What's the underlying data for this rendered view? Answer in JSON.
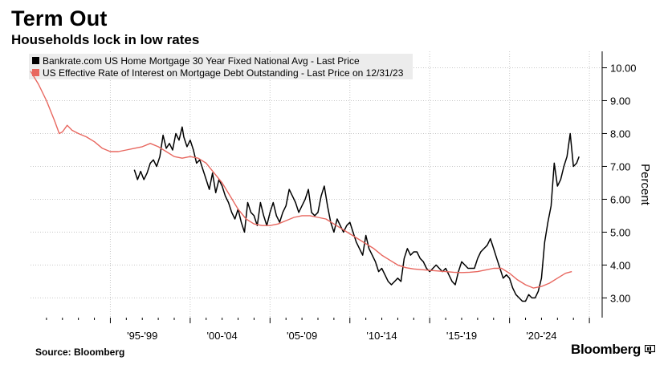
{
  "header": {
    "title": "Term Out",
    "subtitle": "Households lock in low rates"
  },
  "footer": {
    "source": "Source: Bloomberg",
    "brand": "Bloomberg",
    "brand_icon": "bloomberg-terminal-icon"
  },
  "colors": {
    "mortgage_30y": "#000000",
    "effective_rate": "#e8675f",
    "grid": "#c8c8c8",
    "legend_bg": "#ececec"
  },
  "chart_data": {
    "type": "line",
    "title": "Term Out",
    "subtitle": "Households lock in low rates",
    "ylabel": "Percent",
    "ylim": [
      2.4,
      10.5
    ],
    "yticks": [
      "3.00",
      "4.00",
      "5.00",
      "6.00",
      "7.00",
      "8.00",
      "9.00",
      "10.00"
    ],
    "ytick_values": [
      3,
      4,
      5,
      6,
      7,
      8,
      9,
      10
    ],
    "xlim": [
      1990.0,
      2025.8
    ],
    "xtick_labels": [
      "'95-'99",
      "'00-'04",
      "'05-'09",
      "'10-'14",
      "'15-'19",
      "'20-'24"
    ],
    "xtick_centers": [
      1997.0,
      2002.0,
      2007.0,
      2012.0,
      2017.0,
      2022.0
    ],
    "grid": true,
    "legend_position": "top-left",
    "series": [
      {
        "name": "Bankrate.com US Home Mortgage 30 Year Fixed National Avg - Last Price",
        "color": "#000000",
        "points": [
          [
            1996.5,
            6.9
          ],
          [
            1996.7,
            6.6
          ],
          [
            1996.9,
            6.85
          ],
          [
            1997.1,
            6.6
          ],
          [
            1997.3,
            6.8
          ],
          [
            1997.5,
            7.1
          ],
          [
            1997.7,
            7.2
          ],
          [
            1997.9,
            7.0
          ],
          [
            1998.1,
            7.3
          ],
          [
            1998.3,
            7.95
          ],
          [
            1998.5,
            7.55
          ],
          [
            1998.7,
            7.7
          ],
          [
            1998.9,
            7.5
          ],
          [
            1999.1,
            8.0
          ],
          [
            1999.3,
            7.8
          ],
          [
            1999.5,
            8.2
          ],
          [
            1999.6,
            7.9
          ],
          [
            1999.8,
            7.6
          ],
          [
            2000.0,
            7.8
          ],
          [
            2000.2,
            7.5
          ],
          [
            2000.4,
            7.1
          ],
          [
            2000.6,
            7.2
          ],
          [
            2000.8,
            6.9
          ],
          [
            2001.0,
            6.6
          ],
          [
            2001.2,
            6.3
          ],
          [
            2001.4,
            6.8
          ],
          [
            2001.6,
            6.2
          ],
          [
            2001.8,
            6.6
          ],
          [
            2002.0,
            6.4
          ],
          [
            2002.2,
            6.1
          ],
          [
            2002.4,
            5.9
          ],
          [
            2002.6,
            5.6
          ],
          [
            2002.8,
            5.4
          ],
          [
            2003.0,
            5.7
          ],
          [
            2003.2,
            5.3
          ],
          [
            2003.4,
            5.0
          ],
          [
            2003.6,
            5.9
          ],
          [
            2003.8,
            5.6
          ],
          [
            2004.0,
            5.5
          ],
          [
            2004.2,
            5.2
          ],
          [
            2004.4,
            5.9
          ],
          [
            2004.6,
            5.5
          ],
          [
            2004.8,
            5.2
          ],
          [
            2005.0,
            5.6
          ],
          [
            2005.2,
            5.9
          ],
          [
            2005.4,
            5.5
          ],
          [
            2005.6,
            5.3
          ],
          [
            2005.8,
            5.6
          ],
          [
            2006.0,
            5.8
          ],
          [
            2006.2,
            6.3
          ],
          [
            2006.4,
            6.1
          ],
          [
            2006.6,
            5.9
          ],
          [
            2006.8,
            5.6
          ],
          [
            2007.0,
            5.8
          ],
          [
            2007.2,
            6.0
          ],
          [
            2007.4,
            6.3
          ],
          [
            2007.6,
            5.6
          ],
          [
            2007.8,
            5.5
          ],
          [
            2008.0,
            5.6
          ],
          [
            2008.2,
            6.1
          ],
          [
            2008.4,
            6.4
          ],
          [
            2008.6,
            5.8
          ],
          [
            2008.8,
            5.3
          ],
          [
            2009.0,
            5.0
          ],
          [
            2009.2,
            5.4
          ],
          [
            2009.4,
            5.2
          ],
          [
            2009.6,
            5.0
          ],
          [
            2009.8,
            5.2
          ],
          [
            2010.0,
            5.3
          ],
          [
            2010.2,
            5.0
          ],
          [
            2010.4,
            4.7
          ],
          [
            2010.6,
            4.5
          ],
          [
            2010.8,
            4.3
          ],
          [
            2011.0,
            4.9
          ],
          [
            2011.2,
            4.5
          ],
          [
            2011.4,
            4.3
          ],
          [
            2011.6,
            4.1
          ],
          [
            2011.8,
            3.8
          ],
          [
            2012.0,
            3.9
          ],
          [
            2012.2,
            3.7
          ],
          [
            2012.4,
            3.5
          ],
          [
            2012.6,
            3.4
          ],
          [
            2012.8,
            3.5
          ],
          [
            2013.0,
            3.6
          ],
          [
            2013.2,
            3.5
          ],
          [
            2013.4,
            4.2
          ],
          [
            2013.6,
            4.5
          ],
          [
            2013.8,
            4.3
          ],
          [
            2014.0,
            4.4
          ],
          [
            2014.2,
            4.4
          ],
          [
            2014.4,
            4.2
          ],
          [
            2014.6,
            4.1
          ],
          [
            2014.8,
            3.9
          ],
          [
            2015.0,
            3.8
          ],
          [
            2015.2,
            3.9
          ],
          [
            2015.4,
            4.0
          ],
          [
            2015.6,
            3.9
          ],
          [
            2015.8,
            3.8
          ],
          [
            2016.0,
            3.9
          ],
          [
            2016.2,
            3.7
          ],
          [
            2016.4,
            3.5
          ],
          [
            2016.6,
            3.4
          ],
          [
            2016.8,
            3.8
          ],
          [
            2017.0,
            4.1
          ],
          [
            2017.2,
            4.0
          ],
          [
            2017.4,
            3.9
          ],
          [
            2017.6,
            3.9
          ],
          [
            2017.8,
            3.9
          ],
          [
            2018.0,
            4.2
          ],
          [
            2018.2,
            4.4
          ],
          [
            2018.4,
            4.5
          ],
          [
            2018.6,
            4.6
          ],
          [
            2018.8,
            4.8
          ],
          [
            2019.0,
            4.5
          ],
          [
            2019.2,
            4.2
          ],
          [
            2019.4,
            3.9
          ],
          [
            2019.6,
            3.6
          ],
          [
            2019.8,
            3.7
          ],
          [
            2020.0,
            3.6
          ],
          [
            2020.2,
            3.3
          ],
          [
            2020.4,
            3.1
          ],
          [
            2020.6,
            3.0
          ],
          [
            2020.8,
            2.9
          ],
          [
            2021.0,
            2.9
          ],
          [
            2021.2,
            3.1
          ],
          [
            2021.4,
            3.0
          ],
          [
            2021.6,
            3.0
          ],
          [
            2021.8,
            3.2
          ],
          [
            2022.0,
            3.6
          ],
          [
            2022.2,
            4.7
          ],
          [
            2022.4,
            5.3
          ],
          [
            2022.6,
            5.8
          ],
          [
            2022.8,
            7.1
          ],
          [
            2023.0,
            6.4
          ],
          [
            2023.2,
            6.6
          ],
          [
            2023.4,
            7.0
          ],
          [
            2023.6,
            7.3
          ],
          [
            2023.8,
            8.0
          ],
          [
            2024.0,
            7.0
          ],
          [
            2024.2,
            7.1
          ],
          [
            2024.35,
            7.3
          ]
        ]
      },
      {
        "name": "US Effective Rate of Interest on Mortgage Debt Outstanding - Last Price on 12/31/23",
        "color": "#e8675f",
        "points": [
          [
            1990.0,
            9.9
          ],
          [
            1990.5,
            9.5
          ],
          [
            1991.0,
            9.0
          ],
          [
            1991.5,
            8.4
          ],
          [
            1991.8,
            8.0
          ],
          [
            1992.0,
            8.05
          ],
          [
            1992.3,
            8.25
          ],
          [
            1992.6,
            8.1
          ],
          [
            1993.0,
            8.0
          ],
          [
            1993.5,
            7.9
          ],
          [
            1994.0,
            7.75
          ],
          [
            1994.5,
            7.55
          ],
          [
            1995.0,
            7.45
          ],
          [
            1995.5,
            7.45
          ],
          [
            1996.0,
            7.5
          ],
          [
            1996.5,
            7.55
          ],
          [
            1997.0,
            7.6
          ],
          [
            1997.5,
            7.7
          ],
          [
            1998.0,
            7.6
          ],
          [
            1998.5,
            7.45
          ],
          [
            1999.0,
            7.3
          ],
          [
            1999.5,
            7.25
          ],
          [
            2000.0,
            7.3
          ],
          [
            2000.5,
            7.25
          ],
          [
            2001.0,
            7.1
          ],
          [
            2001.5,
            6.8
          ],
          [
            2002.0,
            6.5
          ],
          [
            2002.5,
            6.1
          ],
          [
            2003.0,
            5.7
          ],
          [
            2003.5,
            5.4
          ],
          [
            2004.0,
            5.25
          ],
          [
            2004.5,
            5.2
          ],
          [
            2005.0,
            5.2
          ],
          [
            2005.5,
            5.25
          ],
          [
            2006.0,
            5.35
          ],
          [
            2006.5,
            5.45
          ],
          [
            2007.0,
            5.5
          ],
          [
            2007.5,
            5.5
          ],
          [
            2008.0,
            5.45
          ],
          [
            2008.5,
            5.4
          ],
          [
            2009.0,
            5.25
          ],
          [
            2009.5,
            5.1
          ],
          [
            2010.0,
            4.95
          ],
          [
            2010.5,
            4.8
          ],
          [
            2011.0,
            4.65
          ],
          [
            2011.5,
            4.5
          ],
          [
            2012.0,
            4.3
          ],
          [
            2012.5,
            4.15
          ],
          [
            2013.0,
            4.0
          ],
          [
            2013.5,
            3.92
          ],
          [
            2014.0,
            3.88
          ],
          [
            2014.5,
            3.86
          ],
          [
            2015.0,
            3.84
          ],
          [
            2015.5,
            3.82
          ],
          [
            2016.0,
            3.8
          ],
          [
            2016.5,
            3.78
          ],
          [
            2017.0,
            3.77
          ],
          [
            2017.5,
            3.78
          ],
          [
            2018.0,
            3.8
          ],
          [
            2018.5,
            3.85
          ],
          [
            2019.0,
            3.9
          ],
          [
            2019.5,
            3.9
          ],
          [
            2020.0,
            3.75
          ],
          [
            2020.5,
            3.55
          ],
          [
            2021.0,
            3.4
          ],
          [
            2021.5,
            3.3
          ],
          [
            2022.0,
            3.35
          ],
          [
            2022.5,
            3.45
          ],
          [
            2023.0,
            3.6
          ],
          [
            2023.5,
            3.75
          ],
          [
            2023.9,
            3.8
          ]
        ]
      }
    ]
  }
}
